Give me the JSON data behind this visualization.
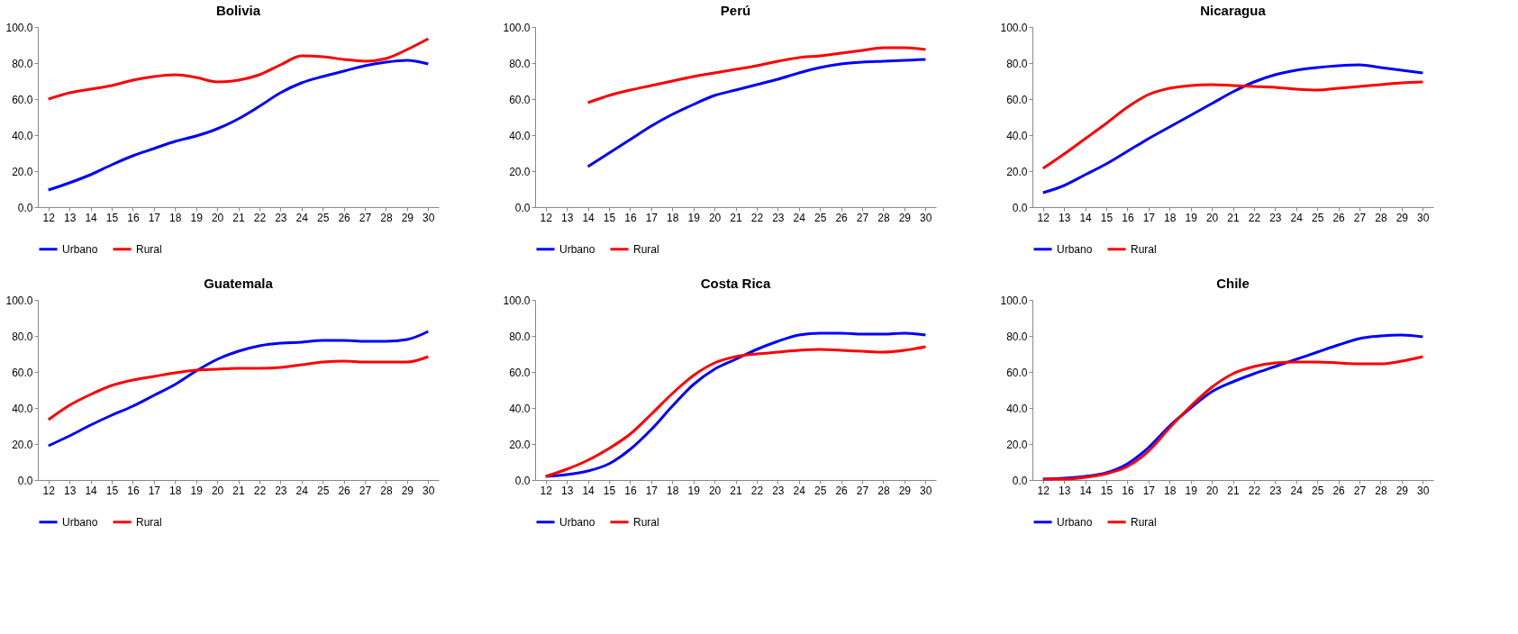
{
  "chart_data": [
    {
      "type": "line",
      "title": "Bolivia",
      "categories": [
        "12",
        "13",
        "14",
        "15",
        "16",
        "17",
        "18",
        "19",
        "20",
        "21",
        "22",
        "23",
        "24",
        "25",
        "26",
        "27",
        "28",
        "29",
        "30"
      ],
      "ylim": [
        0,
        100
      ],
      "yticks": [
        {
          "value": 0,
          "label": "0.0"
        },
        {
          "value": 20,
          "label": "20.0"
        },
        {
          "value": 40,
          "label": "40.0"
        },
        {
          "value": 60,
          "label": "60.0"
        },
        {
          "value": 80,
          "label": "80.0"
        },
        {
          "value": 100,
          "label": "100.0"
        }
      ],
      "grid": false,
      "legend": "bottom",
      "marker": "none",
      "line_style": "solid",
      "series": [
        {
          "name": "Urbano",
          "color": "#0000ff",
          "values": [
            9.5,
            13.5,
            18,
            23.5,
            28.5,
            32.5,
            36.5,
            39.5,
            43.5,
            49,
            56,
            63.5,
            69,
            72.5,
            75.5,
            78.5,
            80.5,
            81.5,
            79.5
          ]
        },
        {
          "name": "Rural",
          "color": "#ff0000",
          "values": [
            60,
            63.5,
            65.5,
            67.5,
            70.5,
            72.5,
            73.5,
            72,
            69.5,
            70.5,
            73.5,
            79,
            84,
            83.5,
            82,
            81,
            82.5,
            87.5,
            93.5
          ]
        }
      ]
    },
    {
      "type": "line",
      "title": "Perú",
      "categories": [
        "12",
        "13",
        "14",
        "15",
        "16",
        "17",
        "18",
        "19",
        "20",
        "21",
        "22",
        "23",
        "24",
        "25",
        "26",
        "27",
        "28",
        "29",
        "30"
      ],
      "ylim": [
        0,
        100
      ],
      "yticks": [
        {
          "value": 0,
          "label": "0.0"
        },
        {
          "value": 20,
          "label": "20.0"
        },
        {
          "value": 40,
          "label": "40.0"
        },
        {
          "value": 60,
          "label": "60.0"
        },
        {
          "value": 80,
          "label": "80.0"
        },
        {
          "value": 100,
          "label": "100.0"
        }
      ],
      "grid": false,
      "legend": "bottom",
      "marker": "none",
      "line_style": "solid",
      "series": [
        {
          "name": "Urbano",
          "color": "#0000ff",
          "values": [
            null,
            null,
            22.5,
            30,
            37.5,
            45,
            51.5,
            57,
            62,
            65,
            68,
            71,
            74.5,
            77.5,
            79.5,
            80.5,
            81,
            81.5,
            82
          ]
        },
        {
          "name": "Rural",
          "color": "#ff0000",
          "values": [
            null,
            null,
            58,
            62,
            65,
            67.5,
            70,
            72.5,
            74.5,
            76.5,
            78.5,
            81,
            83,
            84,
            85.5,
            87,
            88.5,
            88.5,
            87.5
          ]
        }
      ]
    },
    {
      "type": "line",
      "title": "Nicaragua",
      "categories": [
        "12",
        "13",
        "14",
        "15",
        "16",
        "17",
        "18",
        "19",
        "20",
        "21",
        "22",
        "23",
        "24",
        "25",
        "26",
        "27",
        "28",
        "29",
        "30"
      ],
      "ylim": [
        0,
        100
      ],
      "yticks": [
        {
          "value": 0,
          "label": "0.0"
        },
        {
          "value": 20,
          "label": "20.0"
        },
        {
          "value": 40,
          "label": "40.0"
        },
        {
          "value": 60,
          "label": "60.0"
        },
        {
          "value": 80,
          "label": "80.0"
        },
        {
          "value": 100,
          "label": "100.0"
        }
      ],
      "grid": false,
      "legend": "bottom",
      "marker": "none",
      "line_style": "solid",
      "series": [
        {
          "name": "Urbano",
          "color": "#0000ff",
          "values": [
            8,
            12,
            18,
            24,
            31,
            38,
            44.5,
            51,
            57.5,
            64,
            69.5,
            73.5,
            76,
            77.5,
            78.5,
            79,
            77.5,
            76,
            74.5
          ]
        },
        {
          "name": "Rural",
          "color": "#ff0000",
          "values": [
            21.5,
            29.5,
            38,
            46.5,
            55.5,
            62.5,
            66,
            67.5,
            68,
            67.5,
            67,
            66.5,
            65.5,
            65,
            66,
            67,
            68,
            69,
            69.5
          ]
        }
      ]
    },
    {
      "type": "line",
      "title": "Guatemala",
      "categories": [
        "12",
        "13",
        "14",
        "15",
        "16",
        "17",
        "18",
        "19",
        "20",
        "21",
        "22",
        "23",
        "24",
        "25",
        "26",
        "27",
        "28",
        "29",
        "30"
      ],
      "ylim": [
        0,
        100
      ],
      "yticks": [
        {
          "value": 0,
          "label": "0.0"
        },
        {
          "value": 20,
          "label": "20.0"
        },
        {
          "value": 40,
          "label": "40.0"
        },
        {
          "value": 60,
          "label": "60.0"
        },
        {
          "value": 80,
          "label": "80.0"
        },
        {
          "value": 100,
          "label": "100.0"
        }
      ],
      "grid": false,
      "legend": "bottom",
      "marker": "none",
      "line_style": "solid",
      "series": [
        {
          "name": "Urbano",
          "color": "#0000ff",
          "values": [
            19,
            24.5,
            30.5,
            36,
            41,
            47,
            53,
            60.5,
            67,
            71.5,
            74.5,
            76,
            76.5,
            77.5,
            77.5,
            77,
            77,
            78,
            82.5
          ]
        },
        {
          "name": "Rural",
          "color": "#ff0000",
          "values": [
            33.5,
            41.5,
            47.5,
            52.5,
            55.5,
            57.5,
            59.5,
            61,
            61.5,
            62,
            62,
            62.5,
            64,
            65.5,
            66,
            65.5,
            65.5,
            65.5,
            68.5
          ]
        }
      ]
    },
    {
      "type": "line",
      "title": "Costa Rica",
      "categories": [
        "12",
        "13",
        "14",
        "15",
        "16",
        "17",
        "18",
        "19",
        "20",
        "21",
        "22",
        "23",
        "24",
        "25",
        "26",
        "27",
        "28",
        "29",
        "30"
      ],
      "ylim": [
        0,
        100
      ],
      "yticks": [
        {
          "value": 0,
          "label": "0.0"
        },
        {
          "value": 20,
          "label": "20.0"
        },
        {
          "value": 40,
          "label": "40.0"
        },
        {
          "value": 60,
          "label": "60.0"
        },
        {
          "value": 80,
          "label": "80.0"
        },
        {
          "value": 100,
          "label": "100.0"
        }
      ],
      "grid": false,
      "legend": "bottom",
      "marker": "none",
      "line_style": "solid",
      "series": [
        {
          "name": "Urbano",
          "color": "#0000ff",
          "values": [
            2,
            3,
            5,
            9,
            17,
            28,
            41,
            53,
            61.5,
            67,
            72.5,
            77,
            80.5,
            81.5,
            81.5,
            81,
            81,
            81.5,
            80.5
          ]
        },
        {
          "name": "Rural",
          "color": "#ff0000",
          "values": [
            2,
            6,
            11,
            17.5,
            25.5,
            36.5,
            48,
            58,
            65,
            68.5,
            70,
            71,
            72,
            72.5,
            72,
            71.5,
            71,
            72,
            74
          ]
        }
      ]
    },
    {
      "type": "line",
      "title": "Chile",
      "categories": [
        "12",
        "13",
        "14",
        "15",
        "16",
        "17",
        "18",
        "19",
        "20",
        "21",
        "22",
        "23",
        "24",
        "25",
        "26",
        "27",
        "28",
        "29",
        "30"
      ],
      "ylim": [
        0,
        100
      ],
      "yticks": [
        {
          "value": 0,
          "label": "0.0"
        },
        {
          "value": 20,
          "label": "20.0"
        },
        {
          "value": 40,
          "label": "40.0"
        },
        {
          "value": 60,
          "label": "60.0"
        },
        {
          "value": 80,
          "label": "80.0"
        },
        {
          "value": 100,
          "label": "100.0"
        }
      ],
      "grid": false,
      "legend": "bottom",
      "marker": "none",
      "line_style": "solid",
      "series": [
        {
          "name": "Urbano",
          "color": "#0000ff",
          "values": [
            0.5,
            1,
            2,
            4,
            9,
            18,
            30,
            40,
            49,
            54.5,
            59,
            63,
            67,
            71,
            75,
            78.5,
            80,
            80.5,
            79.5
          ]
        },
        {
          "name": "Rural",
          "color": "#ff0000",
          "values": [
            0.5,
            0.5,
            1.5,
            3.5,
            7.5,
            16,
            29,
            41,
            51.5,
            59,
            63,
            65,
            65.5,
            65.5,
            65,
            64.5,
            64.5,
            66,
            68.5
          ]
        }
      ]
    }
  ]
}
